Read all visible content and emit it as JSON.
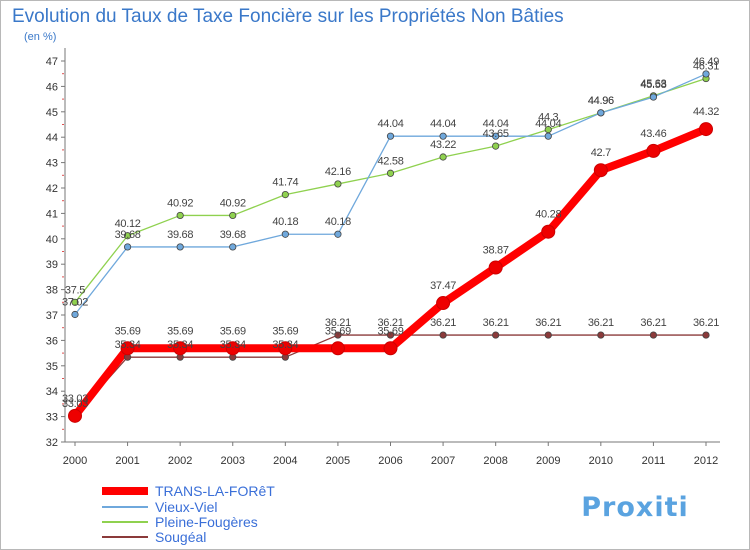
{
  "chart_data": {
    "type": "line",
    "title": "Evolution du Taux de Taxe Foncière sur les Propriétés Non Bâties",
    "subtitle": "(en %)",
    "xlabel": "",
    "ylabel": "",
    "x": [
      "2000",
      "2001",
      "2002",
      "2003",
      "2004",
      "2005",
      "2006",
      "2007",
      "2008",
      "2009",
      "2010",
      "2011",
      "2012"
    ],
    "ylim": [
      32,
      47
    ],
    "yticks": [
      "32",
      "33",
      "34",
      "35",
      "36",
      "37",
      "38",
      "39",
      "40",
      "41",
      "42",
      "43",
      "44",
      "45",
      "46",
      "47"
    ],
    "grid": false,
    "legend_position": "bottom-left",
    "series": [
      {
        "name": "TRANS-LA-FORêT",
        "color": "#ff0000",
        "values": [
          33.03,
          35.69,
          35.69,
          35.69,
          35.69,
          35.69,
          35.69,
          37.47,
          38.87,
          40.28,
          42.7,
          43.46,
          44.32
        ],
        "labels": [
          "33.03",
          "35.69",
          "35.69",
          "35.69",
          "35.69",
          "35.69",
          "35.69",
          "37.47",
          "38.87",
          "40.28",
          "42.7",
          "43.46",
          "44.32"
        ]
      },
      {
        "name": "Vieux-Viel",
        "color": "#6fa8dc",
        "values": [
          37.02,
          39.68,
          39.68,
          39.68,
          40.18,
          40.18,
          44.04,
          44.04,
          44.04,
          44.04,
          44.96,
          45.58,
          46.49
        ],
        "labels": [
          "37.02",
          "39.68",
          "39.68",
          "39.68",
          "40.18",
          "40.18",
          "44.04",
          "44.04",
          "44.04",
          "44.04",
          "44.96",
          "45.58",
          "46.49"
        ]
      },
      {
        "name": "Pleine-Fougères",
        "color": "#8fd14f",
        "values": [
          37.5,
          40.12,
          40.92,
          40.92,
          41.74,
          42.16,
          42.58,
          43.22,
          43.65,
          44.3,
          44.96,
          45.63,
          46.31
        ],
        "labels": [
          "37.5",
          "40.12",
          "40.92",
          "40.92",
          "41.74",
          "42.16",
          "42.58",
          "43.22",
          "43.65",
          "44.3",
          "44.96",
          "45.63",
          "46.31"
        ]
      },
      {
        "name": "Sougéal",
        "color": "#8b3a3a",
        "values": [
          33.03,
          35.34,
          35.34,
          35.34,
          35.34,
          36.21,
          36.21,
          36.21,
          36.21,
          36.21,
          36.21,
          36.21,
          36.21
        ],
        "labels": [
          "33.03",
          "35.34",
          "35.34",
          "35.34",
          "35.34",
          "36.21",
          "36.21",
          "36.21",
          "36.21",
          "36.21",
          "36.21",
          "36.21",
          "36.21"
        ]
      }
    ]
  },
  "branding": {
    "logo_text": "Proxiti"
  }
}
